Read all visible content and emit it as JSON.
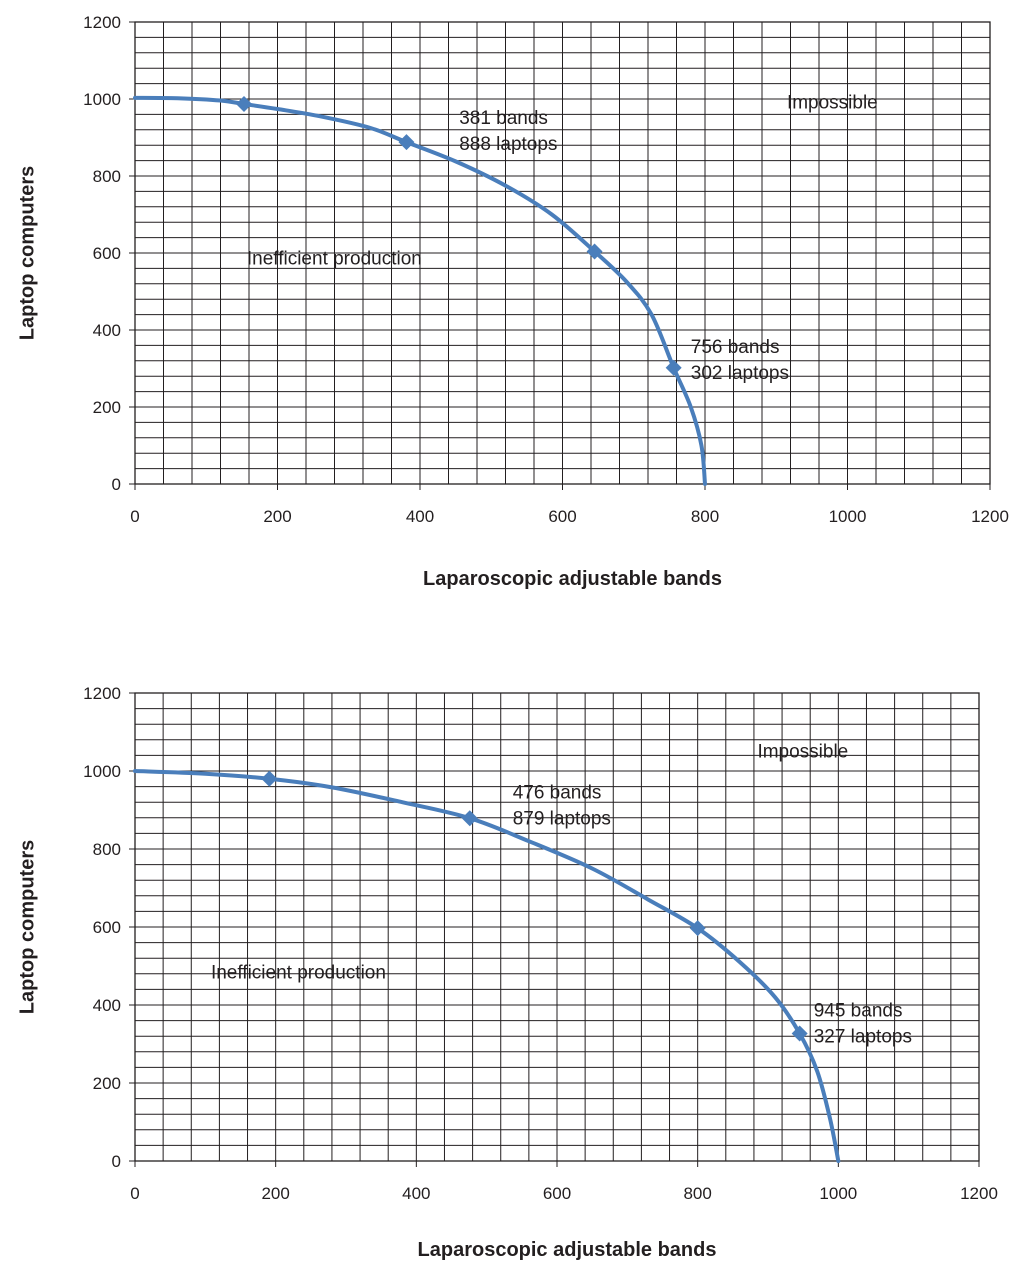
{
  "chart_data": [
    {
      "type": "line",
      "xlabel": "Laparoscopic adjustable bands",
      "ylabel": "Laptop computers",
      "xlim": [
        0,
        1200
      ],
      "ylim": [
        0,
        1200
      ],
      "x_ticks": [
        "0",
        "200",
        "400",
        "600",
        "800",
        "1000",
        "1200"
      ],
      "y_ticks": [
        "0",
        "200",
        "400",
        "600",
        "800",
        "1000",
        "1200"
      ],
      "grid": true,
      "curve_color": "#4a7ebb",
      "curve": [
        {
          "x": 0,
          "y": 1003
        },
        {
          "x": 60,
          "y": 1002
        },
        {
          "x": 120,
          "y": 996
        },
        {
          "x": 153,
          "y": 987
        },
        {
          "x": 200,
          "y": 974
        },
        {
          "x": 260,
          "y": 955
        },
        {
          "x": 330,
          "y": 925
        },
        {
          "x": 381,
          "y": 888
        },
        {
          "x": 450,
          "y": 838
        },
        {
          "x": 520,
          "y": 775
        },
        {
          "x": 585,
          "y": 700
        },
        {
          "x": 645,
          "y": 604
        },
        {
          "x": 690,
          "y": 525
        },
        {
          "x": 725,
          "y": 440
        },
        {
          "x": 756,
          "y": 302
        },
        {
          "x": 780,
          "y": 200
        },
        {
          "x": 795,
          "y": 100
        },
        {
          "x": 800,
          "y": 0
        }
      ],
      "markers": [
        {
          "x": 153,
          "y": 987
        },
        {
          "x": 381,
          "y": 888
        },
        {
          "x": 645,
          "y": 604
        },
        {
          "x": 756,
          "y": 302
        }
      ],
      "annotations": [
        {
          "lines": [
            "381 bands",
            "888 laptops"
          ],
          "x": 455,
          "y": 935
        },
        {
          "lines": [
            "756 bands",
            "302 laptops"
          ],
          "x": 780,
          "y": 340
        },
        {
          "lines": [
            "Inefficient production"
          ],
          "x": 157,
          "y": 570
        },
        {
          "lines": [
            "Impossible"
          ],
          "x": 915,
          "y": 975
        }
      ]
    },
    {
      "type": "line",
      "xlabel": "Laparoscopic adjustable bands",
      "ylabel": "Laptop computers",
      "xlim": [
        0,
        1200
      ],
      "ylim": [
        0,
        1200
      ],
      "x_ticks": [
        "0",
        "200",
        "400",
        "600",
        "800",
        "1000",
        "1200"
      ],
      "y_ticks": [
        "0",
        "200",
        "400",
        "600",
        "800",
        "1000",
        "1200"
      ],
      "grid": true,
      "curve_color": "#4a7ebb",
      "curve": [
        {
          "x": 0,
          "y": 1000
        },
        {
          "x": 100,
          "y": 993
        },
        {
          "x": 191,
          "y": 980
        },
        {
          "x": 280,
          "y": 958
        },
        {
          "x": 380,
          "y": 920
        },
        {
          "x": 476,
          "y": 879
        },
        {
          "x": 560,
          "y": 820
        },
        {
          "x": 650,
          "y": 750
        },
        {
          "x": 730,
          "y": 670
        },
        {
          "x": 800,
          "y": 597
        },
        {
          "x": 860,
          "y": 510
        },
        {
          "x": 910,
          "y": 420
        },
        {
          "x": 945,
          "y": 327
        },
        {
          "x": 970,
          "y": 230
        },
        {
          "x": 988,
          "y": 110
        },
        {
          "x": 1000,
          "y": 0
        }
      ],
      "markers": [
        {
          "x": 191,
          "y": 980
        },
        {
          "x": 476,
          "y": 879
        },
        {
          "x": 800,
          "y": 597
        },
        {
          "x": 945,
          "y": 327
        }
      ],
      "annotations": [
        {
          "lines": [
            "476 bands",
            "879 laptops"
          ],
          "x": 537,
          "y": 930
        },
        {
          "lines": [
            "945 bands",
            "327 laptops"
          ],
          "x": 965,
          "y": 370
        },
        {
          "lines": [
            "Inefficient production"
          ],
          "x": 108,
          "y": 468
        },
        {
          "lines": [
            "Impossible"
          ],
          "x": 885,
          "y": 1035
        }
      ]
    }
  ]
}
